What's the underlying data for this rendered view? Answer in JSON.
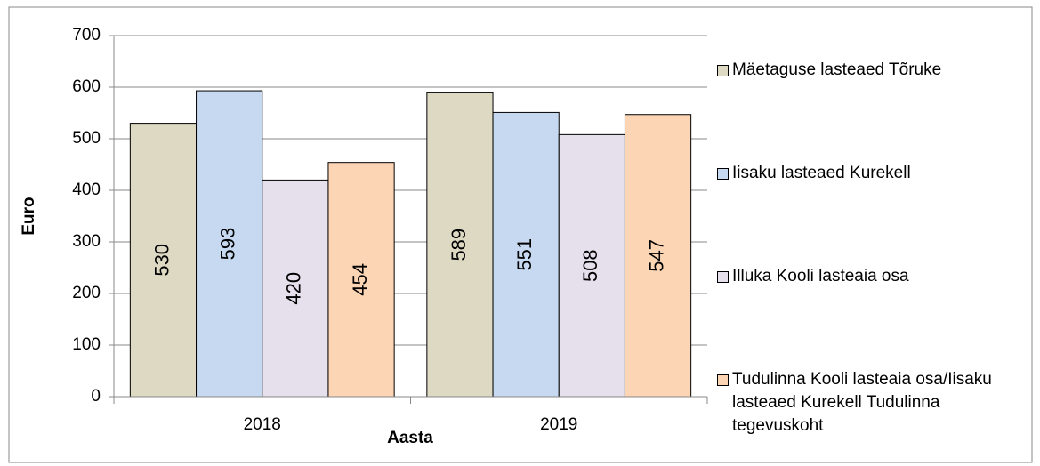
{
  "chart_data": {
    "type": "bar",
    "categories": [
      "2018",
      "2019"
    ],
    "series": [
      {
        "name": "Mäetaguse lasteaed Tõruke",
        "color": "#ddd9c3",
        "values": [
          530,
          589
        ]
      },
      {
        "name": "Iisaku lasteaed Kurekell",
        "color": "#c6d9f1",
        "values": [
          593,
          551
        ]
      },
      {
        "name": "Illuka Kooli lasteaia osa",
        "color": "#e5e0ec",
        "values": [
          420,
          508
        ]
      },
      {
        "name": "Tudulinna Kooli lasteaia osa/Iisaku lasteaed Kurekell Tudulinna tegevuskoht",
        "color": "#fcd5b5",
        "values": [
          454,
          547
        ]
      }
    ],
    "ylabel": "Euro",
    "xlabel": "Aasta",
    "ylim": [
      0,
      700
    ],
    "yticks": [
      0,
      100,
      200,
      300,
      400,
      500,
      600,
      700
    ],
    "grid": true,
    "legend": "right"
  }
}
